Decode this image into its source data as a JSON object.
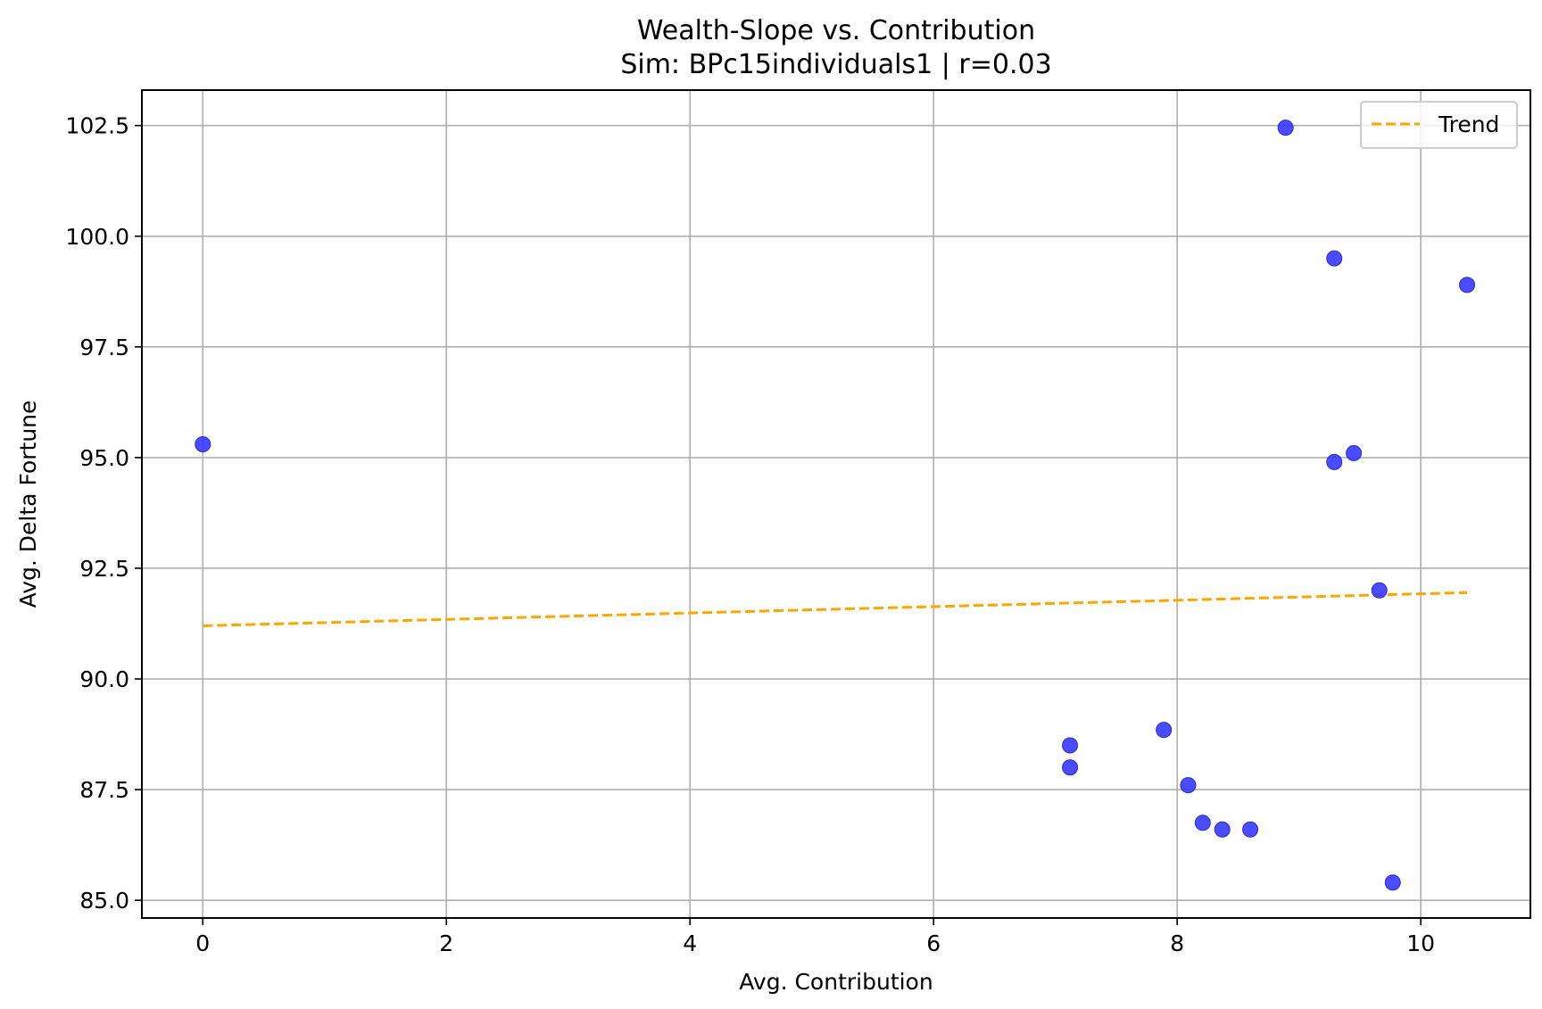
{
  "chart_data": {
    "type": "scatter",
    "title": "Wealth-Slope vs. Contribution",
    "subtitle": "Sim: BPc15individuals1 | r=0.03",
    "xlabel": "Avg. Contribution",
    "ylabel": "Avg. Delta Fortune",
    "xlim": [
      -0.5,
      10.9
    ],
    "ylim": [
      84.6,
      103.3
    ],
    "xticks": [
      0,
      2,
      4,
      6,
      8,
      10
    ],
    "xtick_labels": [
      "0",
      "2",
      "4",
      "6",
      "8",
      "10"
    ],
    "yticks": [
      85.0,
      87.5,
      90.0,
      92.5,
      95.0,
      97.5,
      100.0,
      102.5
    ],
    "ytick_labels": [
      "85.0",
      "87.5",
      "90.0",
      "92.5",
      "95.0",
      "97.5",
      "100.0",
      "102.5"
    ],
    "grid": true,
    "legend": {
      "position": "top-right",
      "entries": [
        "Trend"
      ]
    },
    "series": [
      {
        "kind": "points",
        "color": "#3333ff",
        "x": [
          0,
          7.12,
          7.12,
          7.89,
          8.09,
          8.21,
          8.37,
          8.6,
          8.89,
          9.29,
          9.29,
          9.45,
          9.66,
          9.77,
          10.38
        ],
        "y": [
          95.3,
          88.5,
          88.0,
          88.85,
          87.6,
          86.75,
          86.6,
          86.6,
          102.45,
          99.5,
          94.9,
          95.1,
          92.0,
          85.4,
          98.9
        ]
      },
      {
        "kind": "trend",
        "name": "Trend",
        "color": "#ffa500",
        "x": [
          0,
          10.38
        ],
        "y": [
          91.2,
          91.95
        ]
      }
    ]
  }
}
